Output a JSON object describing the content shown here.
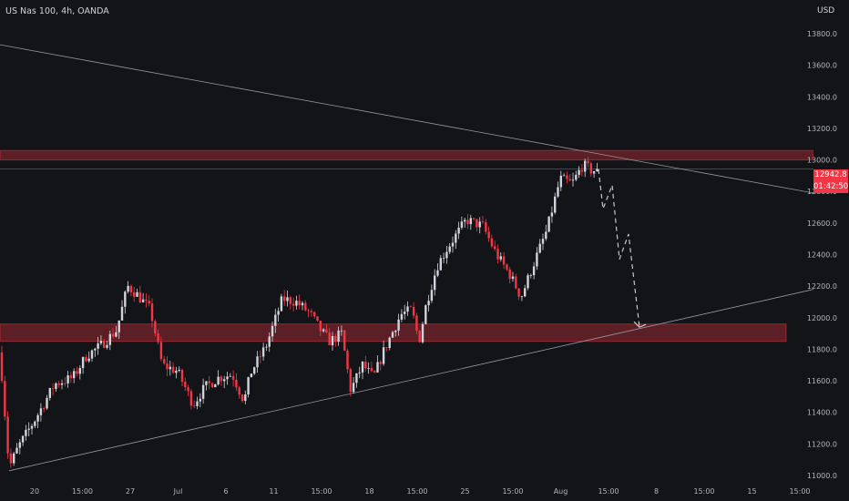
{
  "header": {
    "title": "US Nas 100, 4h, OANDA",
    "currency": "USD"
  },
  "last_price": {
    "price": "12942.8",
    "countdown": "01:42:50",
    "color": "#f23645"
  },
  "colors": {
    "background": "#131417",
    "up": "#d1d4dc",
    "down": "#f23645",
    "zone": "#f2364555",
    "axis_text": "#b2b5be"
  },
  "chart_data": {
    "type": "candlestick",
    "symbol": "US Nas 100",
    "timeframe": "4h",
    "broker": "OANDA",
    "y_axis": {
      "min": 11000,
      "max": 13800,
      "ticks": [
        11000,
        11200,
        11400,
        11600,
        11800,
        12000,
        12200,
        12400,
        12600,
        12800,
        13000,
        13200,
        13400,
        13600,
        13800
      ],
      "tick_labels": [
        "11000.0",
        "11200.0",
        "11400.0",
        "11600.0",
        "11800.0",
        "12000.0",
        "12200.0",
        "12400.0",
        "12600.0",
        "12800.0",
        "13000.0",
        "13200.0",
        "13400.0",
        "13600.0",
        "13800.0"
      ]
    },
    "x_axis": {
      "tick_labels": [
        "20",
        "15:00",
        "27",
        "Jul",
        "6",
        "11",
        "15:00",
        "18",
        "15:00",
        "25",
        "15:00",
        "Aug",
        "15:00",
        "8",
        "15:00",
        "15",
        "15:00"
      ]
    },
    "price_waypoints": [
      [
        0,
        11780
      ],
      [
        10,
        11050
      ],
      [
        20,
        11180
      ],
      [
        40,
        11370
      ],
      [
        60,
        11580
      ],
      [
        80,
        11620
      ],
      [
        95,
        11760
      ],
      [
        110,
        11820
      ],
      [
        128,
        11920
      ],
      [
        140,
        12200
      ],
      [
        150,
        12150
      ],
      [
        165,
        12050
      ],
      [
        178,
        11700
      ],
      [
        195,
        11660
      ],
      [
        212,
        11450
      ],
      [
        225,
        11560
      ],
      [
        240,
        11620
      ],
      [
        255,
        11640
      ],
      [
        268,
        11470
      ],
      [
        275,
        11650
      ],
      [
        292,
        11820
      ],
      [
        310,
        12120
      ],
      [
        325,
        12100
      ],
      [
        340,
        12030
      ],
      [
        352,
        11920
      ],
      [
        362,
        11850
      ],
      [
        375,
        11900
      ],
      [
        385,
        11540
      ],
      [
        398,
        11700
      ],
      [
        410,
        11620
      ],
      [
        422,
        11800
      ],
      [
        440,
        12020
      ],
      [
        452,
        12050
      ],
      [
        460,
        11850
      ],
      [
        468,
        12090
      ],
      [
        480,
        12330
      ],
      [
        492,
        12450
      ],
      [
        512,
        12620
      ],
      [
        530,
        12580
      ],
      [
        545,
        12400
      ],
      [
        560,
        12270
      ],
      [
        572,
        12130
      ],
      [
        585,
        12330
      ],
      [
        600,
        12550
      ],
      [
        615,
        12880
      ],
      [
        628,
        12850
      ],
      [
        640,
        12970
      ],
      [
        650,
        12930
      ],
      [
        657,
        12940
      ]
    ],
    "projection_path": [
      [
        657,
        12940
      ],
      [
        662,
        12690
      ],
      [
        672,
        12840
      ],
      [
        680,
        12370
      ],
      [
        690,
        12530
      ],
      [
        702,
        11940
      ]
    ],
    "annotations": {
      "resistance_zone": [
        13000,
        13060
      ],
      "support_zone": [
        11850,
        11960
      ],
      "last_price": 12942.8,
      "upper_trendline": [
        [
          0,
          13730
        ],
        [
          893,
          12790
        ]
      ],
      "lower_trendline": [
        [
          10,
          11030
        ],
        [
          893,
          12180
        ]
      ]
    }
  }
}
